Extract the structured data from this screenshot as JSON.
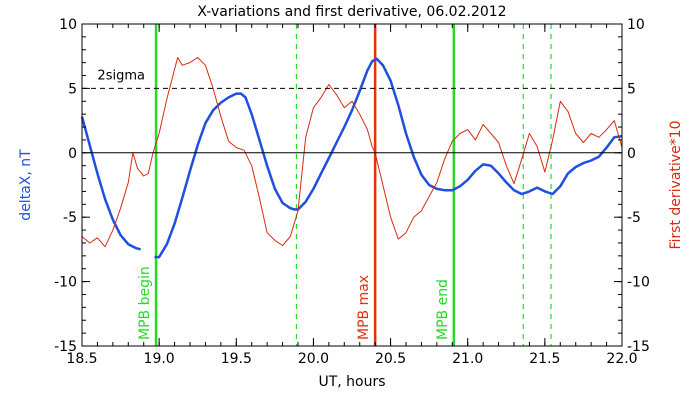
{
  "chart_data": {
    "type": "line",
    "title": "X-variations and first derivative, 06.02.2012",
    "xlabel": "UT, hours",
    "ylabel_left": "deltaX, nT",
    "ylabel_right": "First derivative*10",
    "xlim": [
      18.5,
      22.0
    ],
    "ylim_left": [
      -15,
      10
    ],
    "ylim_right": [
      -15,
      10
    ],
    "x_ticks": [
      18.5,
      19.0,
      19.5,
      20.0,
      20.5,
      21.0,
      21.5,
      22.0
    ],
    "x_tick_labels": [
      "18.5",
      "19.0",
      "19.5",
      "20.0",
      "20.5",
      "21.0",
      "21.5",
      "22.0"
    ],
    "y_ticks": [
      -15,
      -10,
      -5,
      0,
      5,
      10
    ],
    "y_tick_labels": [
      "-15",
      "-10",
      "-5",
      "0",
      "5",
      "10"
    ],
    "grid": false,
    "threshold": {
      "label": "2sigma",
      "y": 5
    },
    "zero_line": 0,
    "colors": {
      "deltaX": "#1f4fe0",
      "derivative": "#d82a10",
      "markers_green": "#22dd22",
      "marker_red": "#e83010",
      "ylabel_left": "#1f4fe0",
      "ylabel_right": "#d82a10"
    },
    "series": [
      {
        "key": "deltaX",
        "axis": "left",
        "segments": [
          [
            [
              18.5,
              2.8
            ],
            [
              18.55,
              0.6
            ],
            [
              18.6,
              -1.6
            ],
            [
              18.65,
              -3.6
            ],
            [
              18.7,
              -5.2
            ],
            [
              18.75,
              -6.4
            ],
            [
              18.8,
              -7.1
            ],
            [
              18.85,
              -7.4
            ],
            [
              18.88,
              -7.5
            ]
          ],
          [
            [
              18.97,
              -8.1
            ],
            [
              19.0,
              -8.1
            ],
            [
              19.05,
              -7.1
            ],
            [
              19.1,
              -5.5
            ],
            [
              19.15,
              -3.5
            ],
            [
              19.2,
              -1.4
            ],
            [
              19.25,
              0.6
            ],
            [
              19.3,
              2.3
            ],
            [
              19.35,
              3.3
            ],
            [
              19.4,
              3.9
            ],
            [
              19.45,
              4.3
            ],
            [
              19.5,
              4.6
            ],
            [
              19.53,
              4.6
            ],
            [
              19.56,
              4.3
            ],
            [
              19.6,
              3.0
            ],
            [
              19.65,
              1.0
            ],
            [
              19.7,
              -1.0
            ],
            [
              19.75,
              -2.8
            ],
            [
              19.8,
              -3.9
            ],
            [
              19.85,
              -4.3
            ],
            [
              19.88,
              -4.4
            ],
            [
              19.9,
              -4.4
            ],
            [
              19.95,
              -3.8
            ],
            [
              20.0,
              -2.8
            ],
            [
              20.05,
              -1.6
            ],
            [
              20.1,
              -0.4
            ],
            [
              20.15,
              0.8
            ],
            [
              20.2,
              2.0
            ],
            [
              20.25,
              3.3
            ],
            [
              20.3,
              4.8
            ],
            [
              20.35,
              6.4
            ],
            [
              20.38,
              7.1
            ],
            [
              20.41,
              7.3
            ],
            [
              20.45,
              6.8
            ],
            [
              20.5,
              5.6
            ],
            [
              20.55,
              3.7
            ],
            [
              20.6,
              1.5
            ],
            [
              20.65,
              -0.3
            ],
            [
              20.7,
              -1.7
            ],
            [
              20.75,
              -2.5
            ],
            [
              20.8,
              -2.8
            ],
            [
              20.85,
              -2.9
            ],
            [
              20.9,
              -2.9
            ],
            [
              20.95,
              -2.6
            ],
            [
              21.0,
              -2.1
            ],
            [
              21.05,
              -1.4
            ],
            [
              21.1,
              -0.9
            ],
            [
              21.15,
              -1.0
            ],
            [
              21.2,
              -1.6
            ],
            [
              21.25,
              -2.3
            ],
            [
              21.3,
              -2.9
            ],
            [
              21.35,
              -3.2
            ],
            [
              21.4,
              -3.0
            ],
            [
              21.45,
              -2.7
            ],
            [
              21.5,
              -3.0
            ],
            [
              21.55,
              -3.2
            ],
            [
              21.6,
              -2.6
            ],
            [
              21.65,
              -1.6
            ],
            [
              21.7,
              -1.1
            ],
            [
              21.75,
              -0.8
            ],
            [
              21.8,
              -0.6
            ],
            [
              21.85,
              -0.3
            ],
            [
              21.9,
              0.4
            ],
            [
              21.95,
              1.2
            ],
            [
              22.0,
              1.3
            ]
          ]
        ]
      },
      {
        "key": "derivative",
        "axis": "right",
        "segments": [
          [
            [
              18.5,
              -6.5
            ],
            [
              18.55,
              -7.0
            ],
            [
              18.6,
              -6.6
            ],
            [
              18.65,
              -7.3
            ],
            [
              18.7,
              -6.0
            ],
            [
              18.75,
              -4.3
            ],
            [
              18.8,
              -2.3
            ],
            [
              18.83,
              0.0
            ],
            [
              18.86,
              -1.2
            ],
            [
              18.9,
              -1.8
            ],
            [
              18.93,
              -1.6
            ],
            [
              18.96,
              0.0
            ],
            [
              19.0,
              1.5
            ],
            [
              19.05,
              4.2
            ],
            [
              19.1,
              6.5
            ],
            [
              19.12,
              7.4
            ],
            [
              19.15,
              6.8
            ],
            [
              19.2,
              7.0
            ],
            [
              19.25,
              7.4
            ],
            [
              19.3,
              6.8
            ],
            [
              19.35,
              5.0
            ],
            [
              19.4,
              2.8
            ],
            [
              19.45,
              0.9
            ],
            [
              19.5,
              0.4
            ],
            [
              19.55,
              0.2
            ],
            [
              19.6,
              -1.0
            ],
            [
              19.65,
              -3.5
            ],
            [
              19.7,
              -6.2
            ],
            [
              19.75,
              -6.8
            ],
            [
              19.8,
              -7.2
            ],
            [
              19.85,
              -6.5
            ],
            [
              19.9,
              -4.5
            ],
            [
              19.95,
              1.2
            ],
            [
              20.0,
              3.5
            ],
            [
              20.05,
              4.3
            ],
            [
              20.1,
              5.3
            ],
            [
              20.15,
              4.5
            ],
            [
              20.2,
              3.5
            ],
            [
              20.25,
              4.0
            ],
            [
              20.3,
              3.0
            ],
            [
              20.35,
              1.8
            ],
            [
              20.38,
              0.5
            ],
            [
              20.4,
              0.0
            ],
            [
              20.45,
              -2.5
            ],
            [
              20.5,
              -5.0
            ],
            [
              20.55,
              -6.7
            ],
            [
              20.6,
              -6.2
            ],
            [
              20.65,
              -5.0
            ],
            [
              20.7,
              -4.5
            ],
            [
              20.75,
              -3.4
            ],
            [
              20.8,
              -2.3
            ],
            [
              20.85,
              -0.5
            ],
            [
              20.9,
              0.9
            ],
            [
              20.95,
              1.5
            ],
            [
              21.0,
              1.8
            ],
            [
              21.05,
              1.0
            ],
            [
              21.1,
              2.2
            ],
            [
              21.15,
              1.5
            ],
            [
              21.2,
              0.8
            ],
            [
              21.25,
              -1.0
            ],
            [
              21.3,
              -2.4
            ],
            [
              21.35,
              -0.5
            ],
            [
              21.4,
              1.5
            ],
            [
              21.45,
              0.5
            ],
            [
              21.5,
              -1.5
            ],
            [
              21.55,
              1.0
            ],
            [
              21.6,
              4.0
            ],
            [
              21.65,
              3.2
            ],
            [
              21.7,
              1.5
            ],
            [
              21.75,
              0.8
            ],
            [
              21.8,
              1.5
            ],
            [
              21.85,
              1.2
            ],
            [
              21.9,
              1.8
            ],
            [
              21.95,
              2.5
            ],
            [
              22.0,
              0.4
            ]
          ]
        ]
      }
    ],
    "vertical_markers": [
      {
        "x": 18.98,
        "style": "solid",
        "color": "green",
        "label": "MPB begin"
      },
      {
        "x": 19.89,
        "style": "dashed",
        "color": "green",
        "label": ""
      },
      {
        "x": 20.4,
        "style": "solid",
        "color": "red",
        "label": "MPB max"
      },
      {
        "x": 20.91,
        "style": "solid",
        "color": "green",
        "label": "MPB end"
      },
      {
        "x": 21.36,
        "style": "dashed",
        "color": "green",
        "label": ""
      },
      {
        "x": 21.54,
        "style": "dashed",
        "color": "green",
        "label": ""
      }
    ]
  }
}
